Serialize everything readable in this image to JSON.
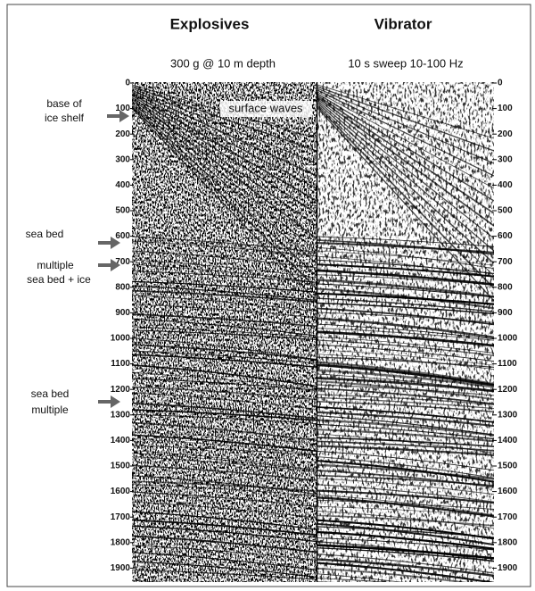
{
  "header": {
    "left_title": "Explosives",
    "right_title": "Vibrator",
    "left_subtitle": "300 g  @ 10 m depth",
    "right_subtitle": "10 s sweep 10-100 Hz"
  },
  "annotations": [
    {
      "lines": [
        "base of",
        "ice shelf"
      ]
    },
    {
      "lines": [
        "sea bed"
      ]
    },
    {
      "lines": [
        "multiple",
        "sea bed + ice"
      ]
    },
    {
      "lines": [
        "sea bed",
        "multiple"
      ]
    },
    {
      "lines": [
        "surface waves"
      ]
    }
  ],
  "axis": {
    "left_ticks": [
      0,
      100,
      200,
      300,
      400,
      500,
      600,
      700,
      800,
      900,
      1000,
      1100,
      1200,
      1300,
      1400,
      1500,
      1600,
      1700,
      1800,
      1900
    ],
    "right_ticks": [
      0,
      100,
      200,
      300,
      400,
      500,
      600,
      700,
      800,
      900,
      1000,
      1100,
      1200,
      1300,
      1400,
      1500,
      1600,
      1700,
      1800,
      1900
    ]
  }
}
